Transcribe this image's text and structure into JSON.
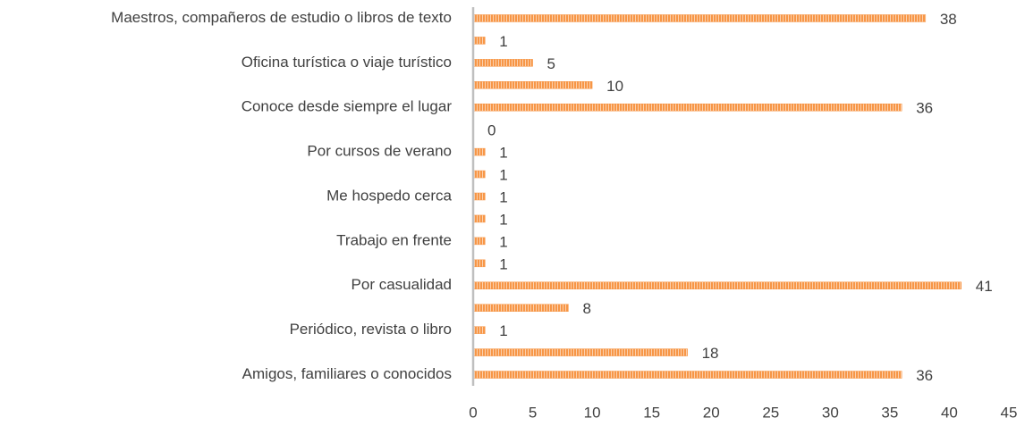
{
  "chart_data": {
    "type": "barh",
    "categories": [
      "Maestros, compañeros de estudio o libros de texto",
      null,
      "Oficina turística o viaje turístico",
      null,
      "Conoce desde siempre el lugar",
      null,
      "Por cursos de verano",
      null,
      "Me hospedo cerca",
      null,
      "Trabajo en frente",
      null,
      "Por casualidad",
      null,
      "Periódico, revista o libro",
      null,
      "Amigos, familiares o conocidos"
    ],
    "values": [
      38,
      1,
      5,
      10,
      36,
      0,
      1,
      1,
      1,
      1,
      1,
      1,
      41,
      8,
      1,
      18,
      36
    ],
    "color": "#f79646",
    "xlim": [
      0,
      45
    ],
    "xticks": [
      0,
      5,
      10,
      15,
      20,
      25,
      30,
      35,
      40,
      45
    ],
    "grid": false
  }
}
